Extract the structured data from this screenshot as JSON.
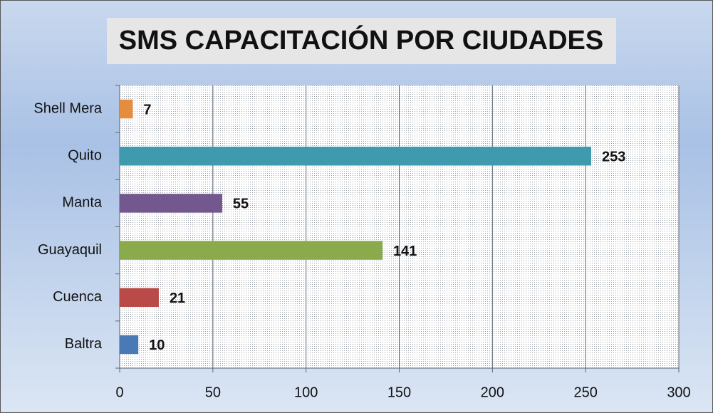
{
  "chart_data": {
    "type": "bar",
    "orientation": "horizontal",
    "title": "SMS CAPACITACIÓN POR CIUDADES",
    "categories": [
      "Baltra",
      "Cuenca",
      "Guayaquil",
      "Manta",
      "Quito",
      "Shell Mera"
    ],
    "values": [
      10,
      21,
      141,
      55,
      253,
      7
    ],
    "colors": [
      "#4a7ab5",
      "#b94a48",
      "#8aaa4c",
      "#73578f",
      "#3f9aae",
      "#e58c3d"
    ],
    "xlim": [
      0,
      300
    ],
    "xticks": [
      0,
      50,
      100,
      150,
      200,
      250,
      300
    ],
    "grid": true
  }
}
